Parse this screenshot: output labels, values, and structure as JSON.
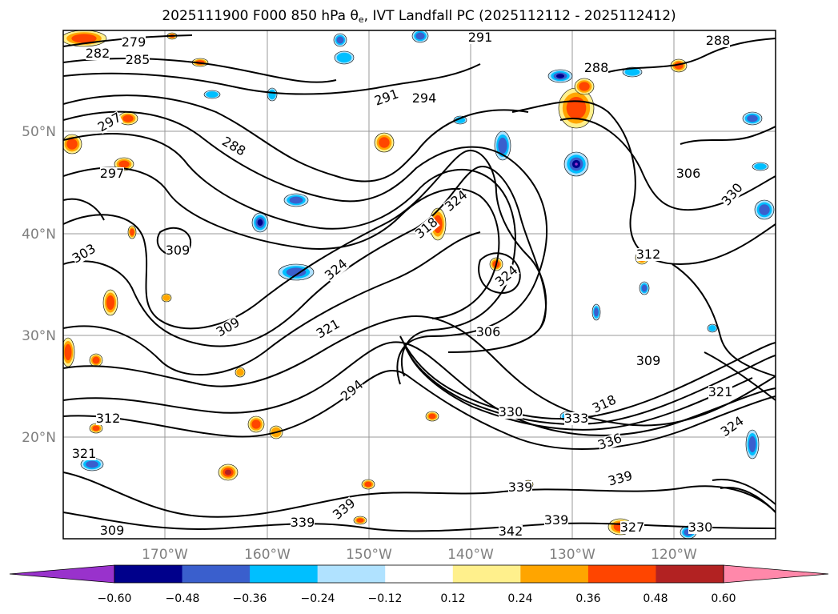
{
  "title": {
    "prefix": "2025111900 F000 850 hPa θ",
    "subscript": "e",
    "suffix": ", IVT Landfall PC (2025112112 - 2025112412)"
  },
  "map": {
    "lat_ticks": [
      "50°N",
      "40°N",
      "30°N",
      "20°N"
    ],
    "lon_ticks": [
      "170°W",
      "160°W",
      "150°W",
      "140°W",
      "130°W",
      "120°W"
    ],
    "contour_labels": [
      "279",
      "282",
      "285",
      "291",
      "288",
      "288",
      "291",
      "294",
      "297",
      "288",
      "306",
      "309",
      "303",
      "297",
      "312",
      "318",
      "324",
      "324",
      "324",
      "321",
      "309",
      "306",
      "309",
      "318",
      "321",
      "324",
      "330",
      "333",
      "336",
      "339",
      "339",
      "339",
      "342",
      "327",
      "330",
      "339",
      "339",
      "309",
      "312",
      "321",
      "294",
      "330"
    ]
  },
  "colorbar": {
    "ticks": [
      "−0.60",
      "−0.48",
      "−0.36",
      "−0.24",
      "−0.12",
      "0.12",
      "0.24",
      "0.36",
      "0.48",
      "0.60"
    ],
    "colors": [
      "#9932cc",
      "#00008b",
      "#3a5fcd",
      "#00bfff",
      "#b0e2ff",
      "#ffffff",
      "#fff08c",
      "#ffa500",
      "#ff4500",
      "#b22222",
      "#ff88aa",
      "#ff88aa"
    ],
    "under_color": "#9932cc",
    "over_color": "#ff88aa"
  },
  "shading": {
    "positive_colors": [
      "#fff08c",
      "#ffa500",
      "#ff4500",
      "#b22222"
    ],
    "negative_colors": [
      "#b0e2ff",
      "#00bfff",
      "#3a5fcd",
      "#00008b",
      "#9932cc"
    ]
  }
}
